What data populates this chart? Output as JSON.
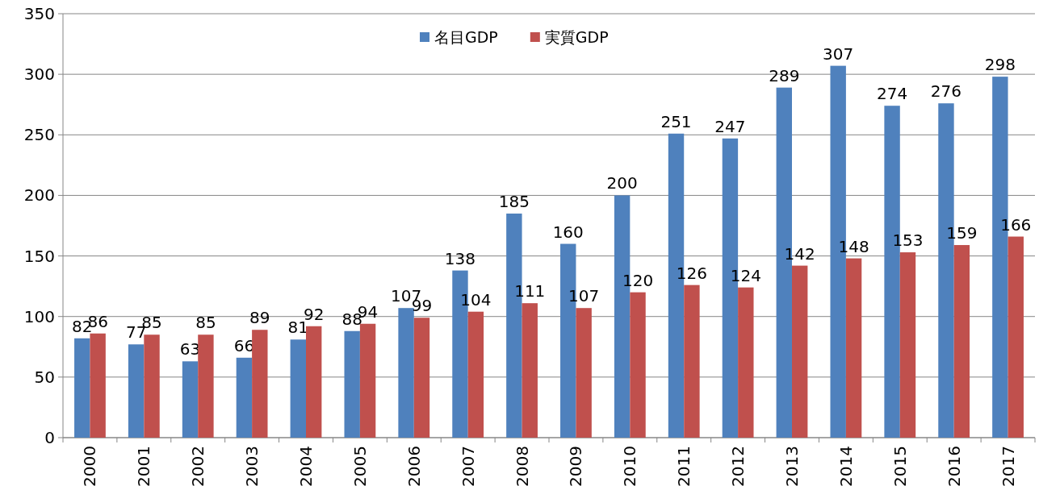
{
  "chart_data": {
    "type": "bar",
    "categories": [
      "2000",
      "2001",
      "2002",
      "2003",
      "2004",
      "2005",
      "2006",
      "2007",
      "2008",
      "2009",
      "2010",
      "2011",
      "2012",
      "2013",
      "2014",
      "2015",
      "2016",
      "2017"
    ],
    "series": [
      {
        "name": "名目GDP",
        "color": "#4f81bd",
        "values": [
          82,
          77,
          63,
          66,
          81,
          88,
          107,
          138,
          185,
          160,
          200,
          251,
          247,
          289,
          307,
          274,
          276,
          298
        ]
      },
      {
        "name": "実質GDP",
        "color": "#c0504d",
        "values": [
          86,
          85,
          85,
          89,
          92,
          94,
          99,
          104,
          111,
          107,
          120,
          126,
          124,
          142,
          148,
          153,
          159,
          166
        ]
      }
    ],
    "ylim": [
      0,
      350
    ],
    "yticks": [
      0,
      50,
      100,
      150,
      200,
      250,
      300,
      350
    ],
    "grid": "y",
    "legend": "top",
    "data_labels": true
  }
}
